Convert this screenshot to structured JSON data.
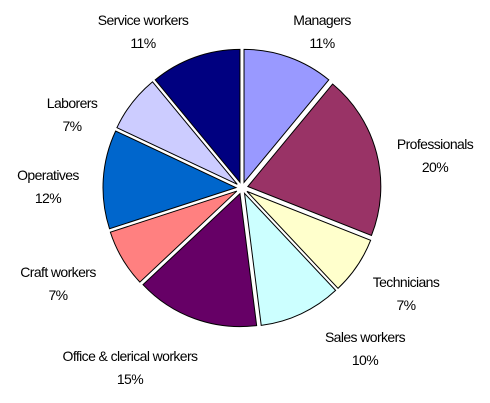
{
  "chart_data": {
    "type": "pie",
    "categories": [
      "Managers",
      "Professionals",
      "Technicians",
      "Sales workers",
      "Office & clerical workers",
      "Craft workers",
      "Operatives",
      "Laborers",
      "Service workers"
    ],
    "values": [
      11,
      20,
      7,
      10,
      15,
      7,
      12,
      7,
      11
    ],
    "value_labels": [
      "11%",
      "20%",
      "7%",
      "10%",
      "15%",
      "7%",
      "12%",
      "7%",
      "11%"
    ],
    "colors": [
      "#9999ff",
      "#993366",
      "#ffffcc",
      "#ccffff",
      "#660066",
      "#ff8080",
      "#0066cc",
      "#ccccff",
      "#000080"
    ]
  }
}
